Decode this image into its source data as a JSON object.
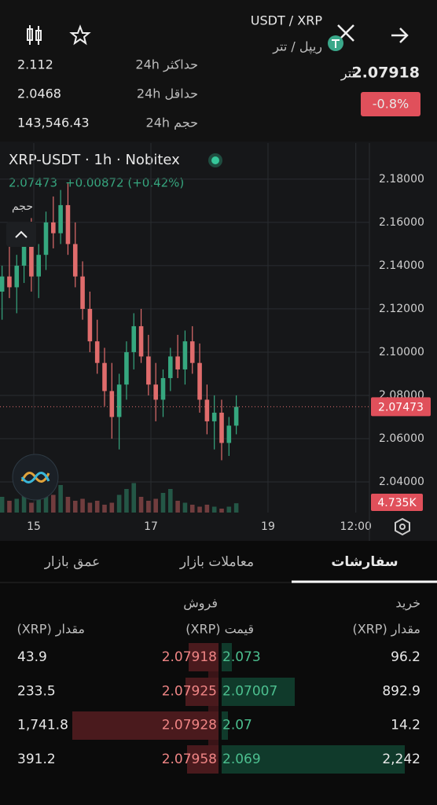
{
  "header": {
    "pair": "USDT / XRP",
    "pair_fa": "ریپل / تتر",
    "price": "2.07918",
    "price_unit": "تتر",
    "change": "-0.8%",
    "stats": [
      {
        "label": "حداکثر 24h",
        "value": "2.112"
      },
      {
        "label": "حداقل 24h",
        "value": "2.0468"
      },
      {
        "label": "حجم 24h",
        "value": "143,546.43"
      }
    ]
  },
  "chart_data": {
    "type": "candlestick",
    "legend_title": "XRP-USDT · 1h · Nobitex",
    "legend_change": "+0.00872 (+0.42%)",
    "volume_title": "حجم",
    "x": [
      -13,
      -10,
      -7,
      -4,
      -1,
      2,
      5,
      8,
      11,
      14,
      17,
      20,
      23,
      26,
      29,
      32,
      35,
      38,
      41,
      44,
      47,
      50,
      53,
      56,
      59,
      62,
      65,
      68,
      71,
      74,
      77,
      80,
      83
    ],
    "open": [
      2.128,
      2.135,
      2.13,
      2.14,
      2.15,
      2.135,
      2.145,
      2.16,
      2.155,
      2.168,
      2.15,
      2.135,
      2.12,
      2.105,
      2.095,
      2.082,
      2.07,
      2.085,
      2.1,
      2.112,
      2.098,
      2.085,
      2.078,
      2.088,
      2.098,
      2.092,
      2.105,
      2.095,
      2.078,
      2.068,
      2.072,
      2.058,
      2.066
    ],
    "high": [
      2.14,
      2.15,
      2.145,
      2.158,
      2.162,
      2.15,
      2.165,
      2.172,
      2.175,
      2.178,
      2.16,
      2.142,
      2.128,
      2.115,
      2.102,
      2.095,
      2.09,
      2.105,
      2.118,
      2.12,
      2.108,
      2.095,
      2.092,
      2.102,
      2.108,
      2.11,
      2.112,
      2.104,
      2.085,
      2.08,
      2.078,
      2.07,
      2.08
    ],
    "low": [
      2.115,
      2.125,
      2.118,
      2.132,
      2.128,
      2.125,
      2.138,
      2.148,
      2.15,
      2.145,
      2.13,
      2.115,
      2.1,
      2.09,
      2.075,
      2.06,
      2.055,
      2.078,
      2.092,
      2.095,
      2.08,
      2.068,
      2.07,
      2.082,
      2.088,
      2.085,
      2.09,
      2.072,
      2.062,
      2.055,
      2.05,
      2.052,
      2.062
    ],
    "close": [
      2.135,
      2.13,
      2.14,
      2.15,
      2.135,
      2.145,
      2.16,
      2.155,
      2.168,
      2.15,
      2.135,
      2.12,
      2.105,
      2.095,
      2.082,
      2.07,
      2.085,
      2.1,
      2.112,
      2.098,
      2.085,
      2.078,
      2.088,
      2.098,
      2.092,
      2.105,
      2.095,
      2.078,
      2.068,
      2.072,
      2.058,
      2.066,
      2.07473
    ],
    "volume": [
      8,
      6,
      7,
      9,
      5,
      10,
      12,
      9,
      14,
      8,
      6,
      7,
      5,
      6,
      4,
      5,
      9,
      12,
      15,
      8,
      6,
      7,
      10,
      12,
      6,
      5,
      4,
      3,
      4,
      3,
      2,
      3,
      4.735
    ],
    "volume_last_label": "4.735K",
    "xlim": [
      -13.85,
      137.57
    ],
    "xticks": [
      {
        "value": 0,
        "label": "15"
      },
      {
        "value": 48,
        "label": "17"
      },
      {
        "value": 96,
        "label": "19"
      },
      {
        "value": 132,
        "label": "12:00"
      }
    ],
    "ylim": [
      2.0258,
      2.1967
    ],
    "yticks": [
      {
        "value": 2.04,
        "label": "2.04000"
      },
      {
        "value": 2.06,
        "label": "2.06000"
      },
      {
        "value": 2.08,
        "label": "2.08000"
      },
      {
        "value": 2.1,
        "label": "2.10000"
      },
      {
        "value": 2.12,
        "label": "2.12000"
      },
      {
        "value": 2.14,
        "label": "2.14000"
      },
      {
        "value": 2.16,
        "label": "2.16000"
      },
      {
        "value": 2.18,
        "label": "2.18000"
      }
    ],
    "vlim": [
      0,
      40
    ],
    "grid": true,
    "up_color": "#36a77f",
    "down_color": "#e06c6c"
  },
  "tabs": [
    "سفارشات",
    "معاملات بازار",
    "عمق بازار"
  ],
  "order_book": {
    "buy_label": "خرید",
    "sell_label": "فروش",
    "columns": [
      "مقدار (XRP)",
      "قیمت (XRP)",
      "مقدار (XRP)"
    ],
    "rows": [
      [
        "43.9",
        "2.07918",
        "2.073",
        "96.2"
      ],
      [
        "233.5",
        "2.07925",
        "2.07007",
        "892.9"
      ],
      [
        "1,741.8",
        "2.07928",
        "2.07",
        "14.2"
      ],
      [
        "391.2",
        "2.07958",
        "2.069",
        "2,242"
      ]
    ]
  }
}
